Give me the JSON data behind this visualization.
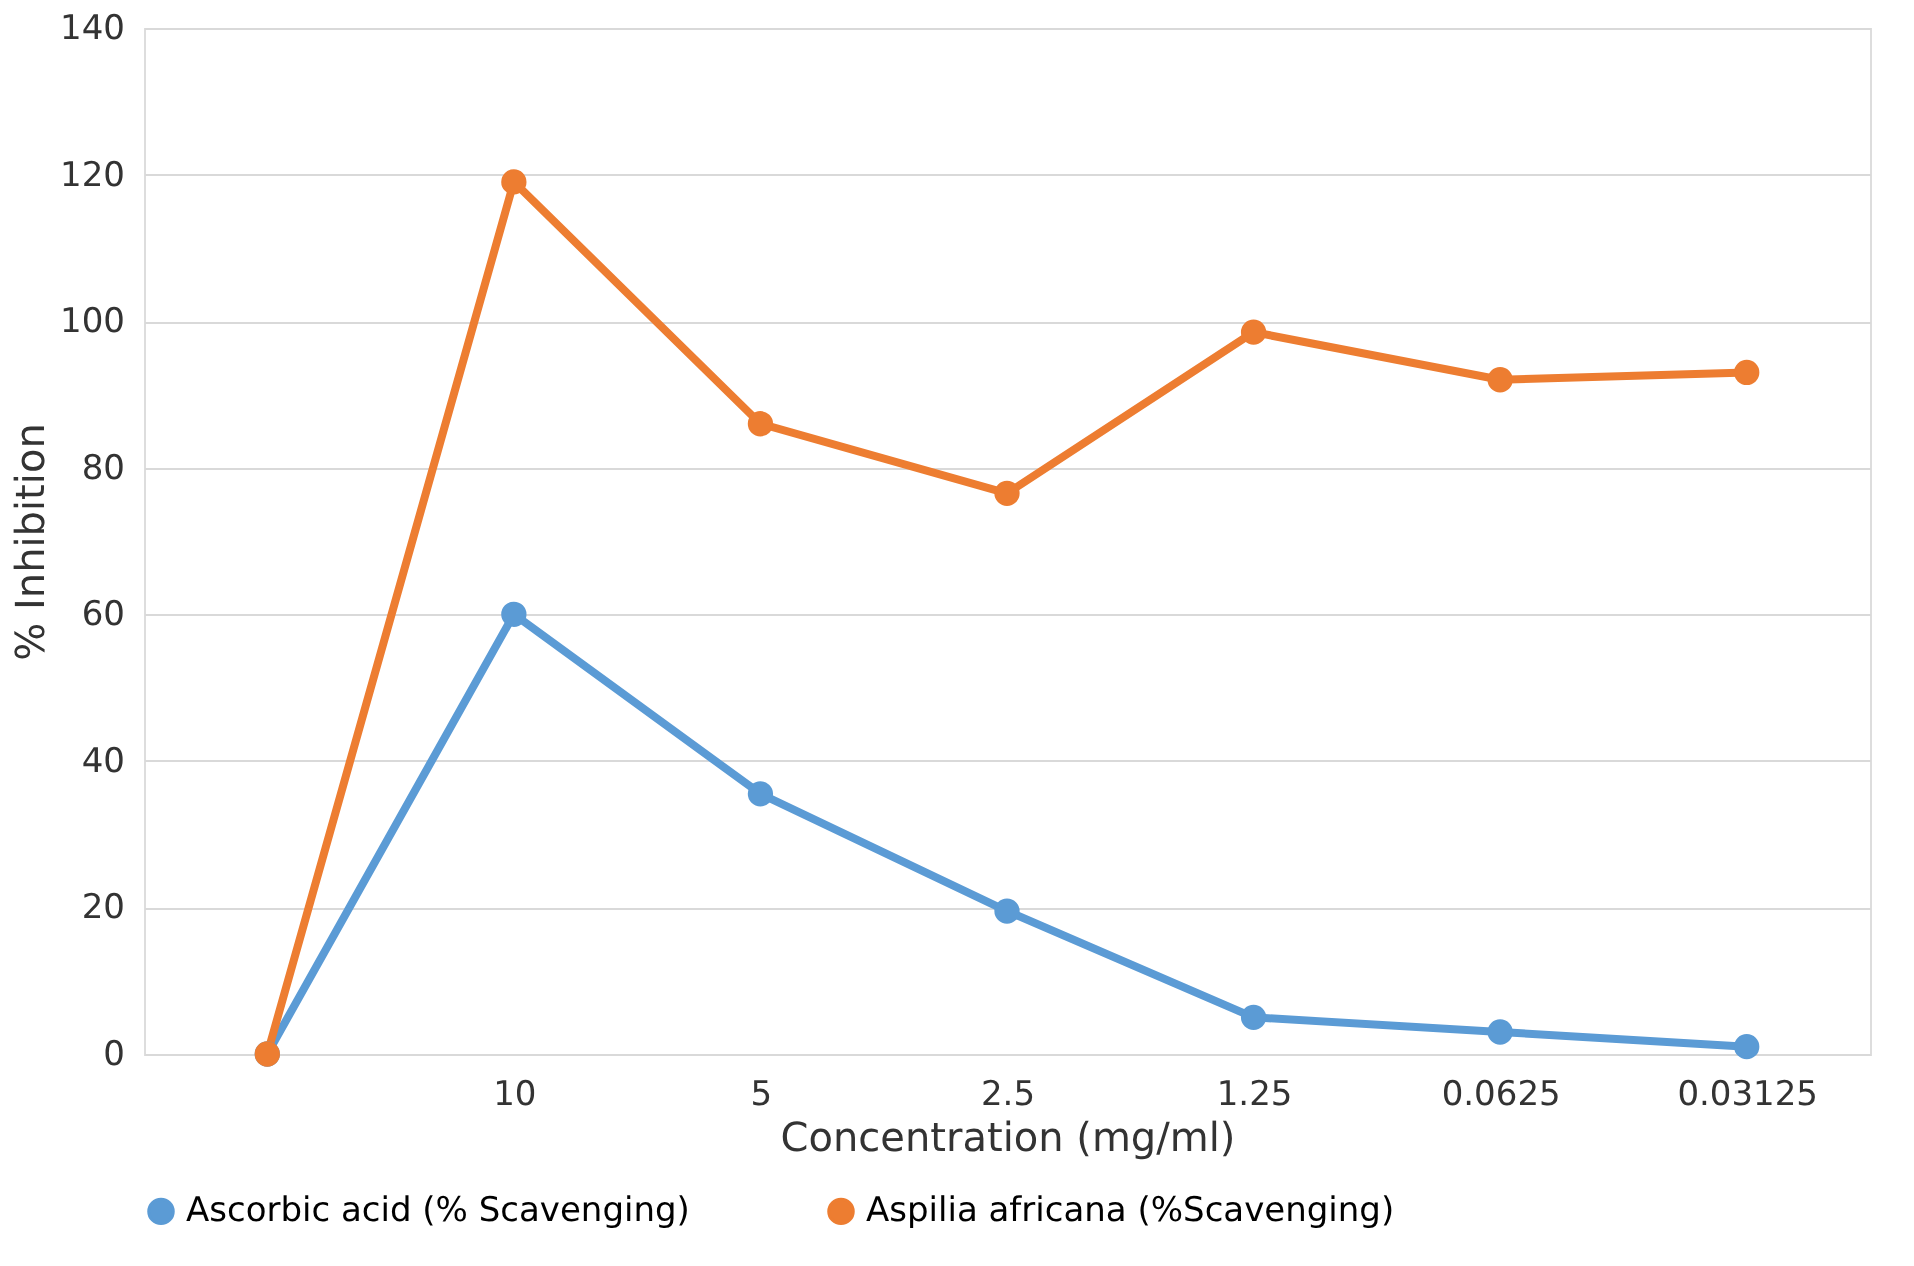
{
  "chart_data": {
    "type": "line",
    "xlabel": "Concentration (mg/ml)",
    "ylabel": "% Inhibition",
    "categories": [
      null,
      "10",
      "5",
      "2.5",
      "1.25",
      "0.0625",
      "0.03125"
    ],
    "series": [
      {
        "name": "Ascorbic  acid (% Scavenging)",
        "color": "#5b9bd5",
        "values": [
          0,
          60,
          35.5,
          19.5,
          5,
          3,
          1
        ]
      },
      {
        "name": "Aspilia africana (%Scavenging)",
        "color": "#ed7d31",
        "values": [
          0,
          119,
          86,
          76.5,
          98.5,
          92,
          93
        ]
      }
    ],
    "ylim": [
      0,
      140
    ],
    "yticks": [
      0,
      20,
      40,
      60,
      80,
      100,
      120,
      140
    ],
    "grid": "y",
    "legend": "bottom",
    "marker": "circle",
    "line_style": "solid"
  }
}
